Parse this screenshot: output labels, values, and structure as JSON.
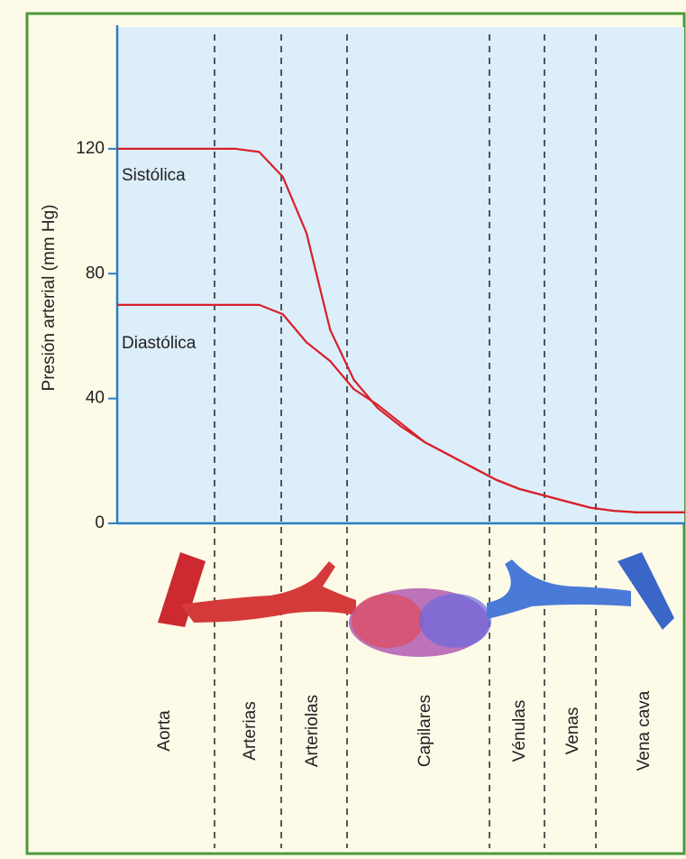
{
  "chart_data": {
    "type": "line",
    "y_label": "Presión arterial  (mm Hg)",
    "ylim": [
      0,
      159
    ],
    "yticks": [
      0,
      40,
      80,
      120
    ],
    "categories": [
      null,
      null,
      null,
      null,
      null,
      null,
      null,
      null,
      null,
      null,
      null,
      null,
      null,
      null,
      null,
      null,
      null,
      null,
      null,
      null,
      null,
      null,
      null,
      null,
      null
    ],
    "series": [
      {
        "name": "Sistólica",
        "color": "#d8202a",
        "values": [
          120,
          120,
          120,
          120,
          120,
          120,
          119,
          111,
          93,
          62,
          46,
          37,
          31,
          26,
          22,
          18,
          14,
          11,
          9,
          7,
          5,
          4,
          3.5,
          3.5,
          3.5
        ]
      },
      {
        "name": "Diastólica",
        "color": "#d8202a",
        "values": [
          70,
          70,
          70,
          70,
          70,
          70,
          70,
          67,
          58,
          52,
          43,
          38,
          32,
          26,
          22,
          18,
          14,
          11,
          9,
          7,
          5,
          4,
          3.5,
          3.5,
          3.5
        ]
      }
    ],
    "regions": [
      "Aorta",
      "Arterias",
      "Arteriolas",
      "Capilares",
      "Vénulas",
      "Venas",
      "Vena cava"
    ]
  }
}
